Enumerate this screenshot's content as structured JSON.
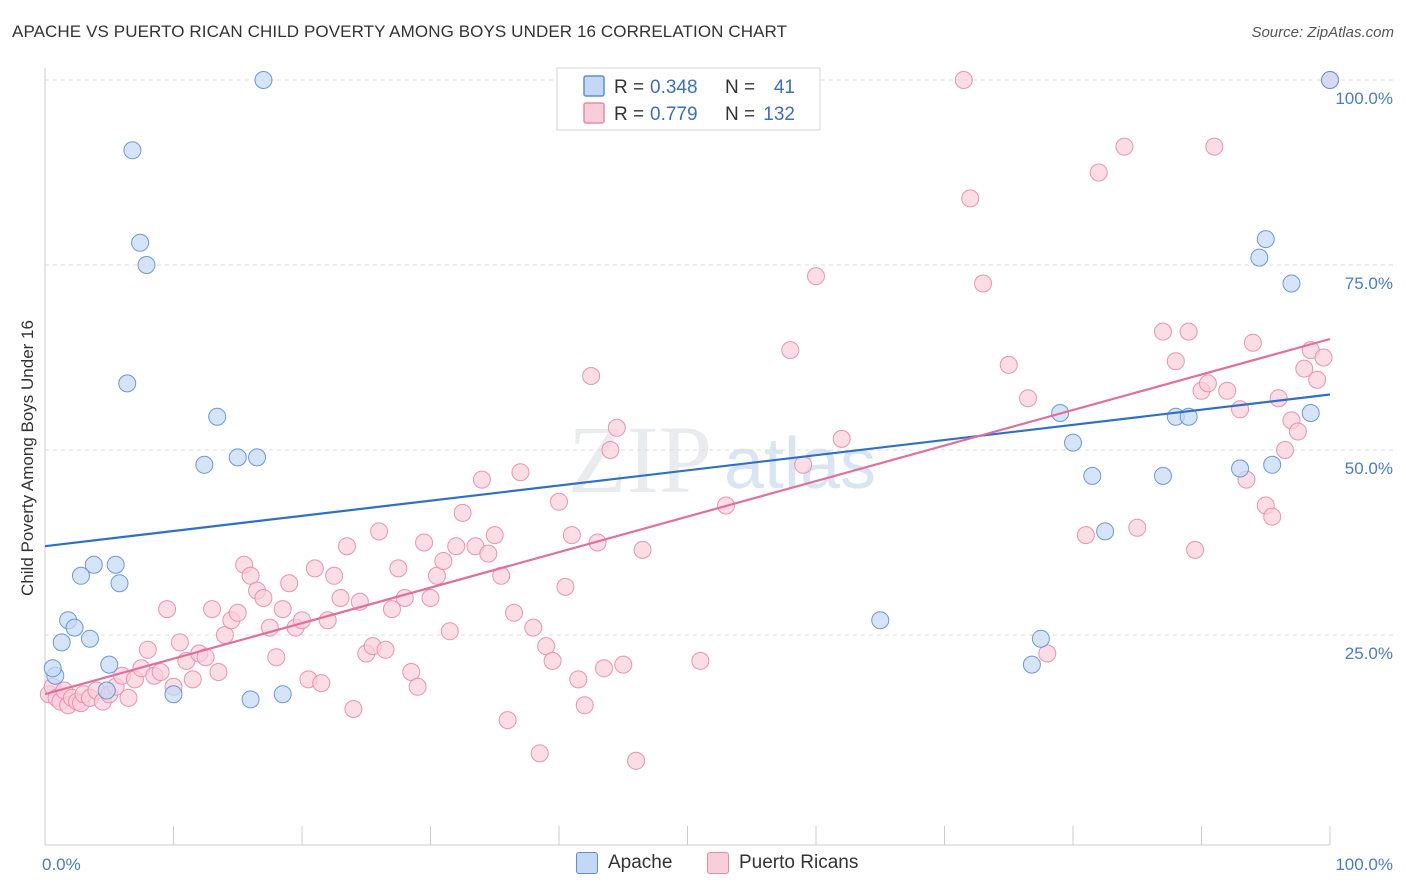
{
  "header": {
    "title": "APACHE VS PUERTO RICAN CHILD POVERTY AMONG BOYS UNDER 16 CORRELATION CHART",
    "source": "Source: ZipAtlas.com"
  },
  "watermark": {
    "zip": "ZIP",
    "atlas": "atlas"
  },
  "chart_data": {
    "type": "scatter",
    "title": "APACHE VS PUERTO RICAN CHILD POVERTY AMONG BOYS UNDER 16 CORRELATION CHART",
    "ylabel": "Child Poverty Among Boys Under 16",
    "xlabel": "",
    "xlim": [
      0,
      100
    ],
    "ylim": [
      0,
      100
    ],
    "x_tick_labels": [
      "0.0%",
      "100.0%"
    ],
    "y_ticks": [
      25,
      50,
      75,
      100
    ],
    "y_tick_labels": [
      "25.0%",
      "50.0%",
      "75.0%",
      "100.0%"
    ],
    "grid": true,
    "legend_position": "top-center",
    "stats": [
      {
        "r_label": "R =",
        "r_value": "0.348",
        "n_label": "N =",
        "n_value": "41"
      },
      {
        "r_label": "R =",
        "r_value": "0.779",
        "n_label": "N =",
        "n_value": "132"
      }
    ],
    "series": [
      {
        "name": "Apache",
        "color": "#5b8fd6",
        "fill": "#c4d8f5",
        "trend": {
          "x": [
            0,
            100
          ],
          "y": [
            37,
            57.5
          ],
          "color": "#2f6fc9"
        },
        "points": [
          [
            0.8,
            19.5
          ],
          [
            0.6,
            20.5
          ],
          [
            1.3,
            24
          ],
          [
            1.8,
            27
          ],
          [
            2.3,
            26
          ],
          [
            2.8,
            33
          ],
          [
            3.5,
            24.5
          ],
          [
            3.8,
            34.5
          ],
          [
            4.8,
            17.5
          ],
          [
            5.0,
            21
          ],
          [
            5.5,
            34.5
          ],
          [
            5.8,
            32
          ],
          [
            6.4,
            59
          ],
          [
            6.8,
            90.5
          ],
          [
            7.4,
            78
          ],
          [
            7.9,
            75
          ],
          [
            10.0,
            17
          ],
          [
            12.4,
            48
          ],
          [
            13.4,
            54.5
          ],
          [
            15.0,
            49
          ],
          [
            16.0,
            16.3
          ],
          [
            16.5,
            49
          ],
          [
            17.0,
            100
          ],
          [
            18.5,
            17
          ],
          [
            65.0,
            27
          ],
          [
            76.8,
            21
          ],
          [
            77.5,
            24.5
          ],
          [
            79.0,
            55
          ],
          [
            80.0,
            51
          ],
          [
            81.5,
            46.5
          ],
          [
            82.5,
            39
          ],
          [
            87.0,
            46.5
          ],
          [
            88.0,
            54.5
          ],
          [
            89.0,
            54.5
          ],
          [
            93.0,
            47.5
          ],
          [
            94.5,
            76
          ],
          [
            95.0,
            78.5
          ],
          [
            95.5,
            48
          ],
          [
            97.0,
            72.5
          ],
          [
            98.5,
            55
          ],
          [
            100,
            100
          ]
        ]
      },
      {
        "name": "Puerto Ricans",
        "color": "#e98aa8",
        "fill": "#f9cedb",
        "trend": {
          "x": [
            0,
            100
          ],
          "y": [
            17,
            65
          ],
          "color": "#e0709a"
        },
        "points": [
          [
            0.3,
            17
          ],
          [
            0.6,
            18
          ],
          [
            0.9,
            16.5
          ],
          [
            1.2,
            16
          ],
          [
            1.5,
            17.5
          ],
          [
            1.8,
            15.5
          ],
          [
            2.1,
            16.5
          ],
          [
            2.5,
            16
          ],
          [
            2.8,
            15.8
          ],
          [
            3.0,
            17
          ],
          [
            3.5,
            16.5
          ],
          [
            4.0,
            17.5
          ],
          [
            4.5,
            16
          ],
          [
            5.0,
            17
          ],
          [
            5.5,
            18
          ],
          [
            6.0,
            19.5
          ],
          [
            6.5,
            16.5
          ],
          [
            7.0,
            19
          ],
          [
            7.5,
            20.5
          ],
          [
            8.0,
            23
          ],
          [
            8.5,
            19.5
          ],
          [
            9.0,
            20
          ],
          [
            9.5,
            28.5
          ],
          [
            10.0,
            18
          ],
          [
            10.5,
            24
          ],
          [
            11.0,
            21.5
          ],
          [
            11.5,
            19
          ],
          [
            12.0,
            22.5
          ],
          [
            12.5,
            22
          ],
          [
            13.0,
            28.5
          ],
          [
            13.5,
            20
          ],
          [
            14.0,
            25
          ],
          [
            14.5,
            27
          ],
          [
            15.0,
            28
          ],
          [
            15.5,
            34.5
          ],
          [
            16.0,
            33
          ],
          [
            16.5,
            31
          ],
          [
            17.0,
            30
          ],
          [
            17.5,
            26
          ],
          [
            18.0,
            22
          ],
          [
            18.5,
            28.5
          ],
          [
            19.0,
            32
          ],
          [
            19.5,
            26
          ],
          [
            20.0,
            27
          ],
          [
            20.5,
            19
          ],
          [
            21.0,
            34
          ],
          [
            21.5,
            18.5
          ],
          [
            22.0,
            27
          ],
          [
            22.5,
            33
          ],
          [
            23.0,
            30
          ],
          [
            23.5,
            37
          ],
          [
            24.0,
            15
          ],
          [
            24.5,
            29.5
          ],
          [
            25.0,
            22.5
          ],
          [
            25.5,
            23.5
          ],
          [
            26.0,
            39
          ],
          [
            26.5,
            23
          ],
          [
            27.0,
            28.5
          ],
          [
            27.5,
            34
          ],
          [
            28.0,
            30
          ],
          [
            28.5,
            20
          ],
          [
            29.0,
            18
          ],
          [
            29.5,
            37.5
          ],
          [
            30.0,
            30
          ],
          [
            30.5,
            33
          ],
          [
            31.0,
            35
          ],
          [
            31.5,
            25.5
          ],
          [
            32.0,
            37
          ],
          [
            32.5,
            41.5
          ],
          [
            33.5,
            37
          ],
          [
            34.0,
            46
          ],
          [
            34.5,
            36
          ],
          [
            35.0,
            38.5
          ],
          [
            35.5,
            33
          ],
          [
            36.0,
            13.5
          ],
          [
            36.5,
            28
          ],
          [
            37.0,
            47
          ],
          [
            38.0,
            26
          ],
          [
            38.5,
            9
          ],
          [
            39.0,
            23.5
          ],
          [
            39.5,
            21.5
          ],
          [
            40.0,
            43
          ],
          [
            40.5,
            31.5
          ],
          [
            41.0,
            38.5
          ],
          [
            41.5,
            19
          ],
          [
            42.0,
            15.5
          ],
          [
            42.5,
            60
          ],
          [
            43.0,
            37.5
          ],
          [
            43.5,
            20.5
          ],
          [
            44.0,
            50
          ],
          [
            44.5,
            53
          ],
          [
            45.0,
            21
          ],
          [
            46.0,
            8
          ],
          [
            46.5,
            36.5
          ],
          [
            51.0,
            21.5
          ],
          [
            53.0,
            42.5
          ],
          [
            58.0,
            63.5
          ],
          [
            59.0,
            48
          ],
          [
            60.0,
            73.5
          ],
          [
            62.0,
            51.5
          ],
          [
            71.5,
            100
          ],
          [
            72.0,
            84
          ],
          [
            73.0,
            72.5
          ],
          [
            75.0,
            61.5
          ],
          [
            76.5,
            57
          ],
          [
            78.0,
            22.5
          ],
          [
            81.0,
            38.5
          ],
          [
            82.0,
            87.5
          ],
          [
            84.0,
            91
          ],
          [
            85.0,
            39.5
          ],
          [
            87.0,
            66
          ],
          [
            88.0,
            62
          ],
          [
            89.0,
            66
          ],
          [
            89.5,
            36.5
          ],
          [
            90.0,
            58
          ],
          [
            90.5,
            59
          ],
          [
            91.0,
            91
          ],
          [
            92.0,
            58
          ],
          [
            93.0,
            55.5
          ],
          [
            93.5,
            46
          ],
          [
            94.0,
            64.5
          ],
          [
            95.0,
            42.5
          ],
          [
            95.5,
            41
          ],
          [
            96.0,
            57
          ],
          [
            96.5,
            50
          ],
          [
            97.0,
            54
          ],
          [
            97.5,
            52.5
          ],
          [
            98.0,
            61
          ],
          [
            98.5,
            63.5
          ],
          [
            99.0,
            59.5
          ],
          [
            99.5,
            62.5
          ],
          [
            100,
            100
          ]
        ]
      }
    ]
  }
}
